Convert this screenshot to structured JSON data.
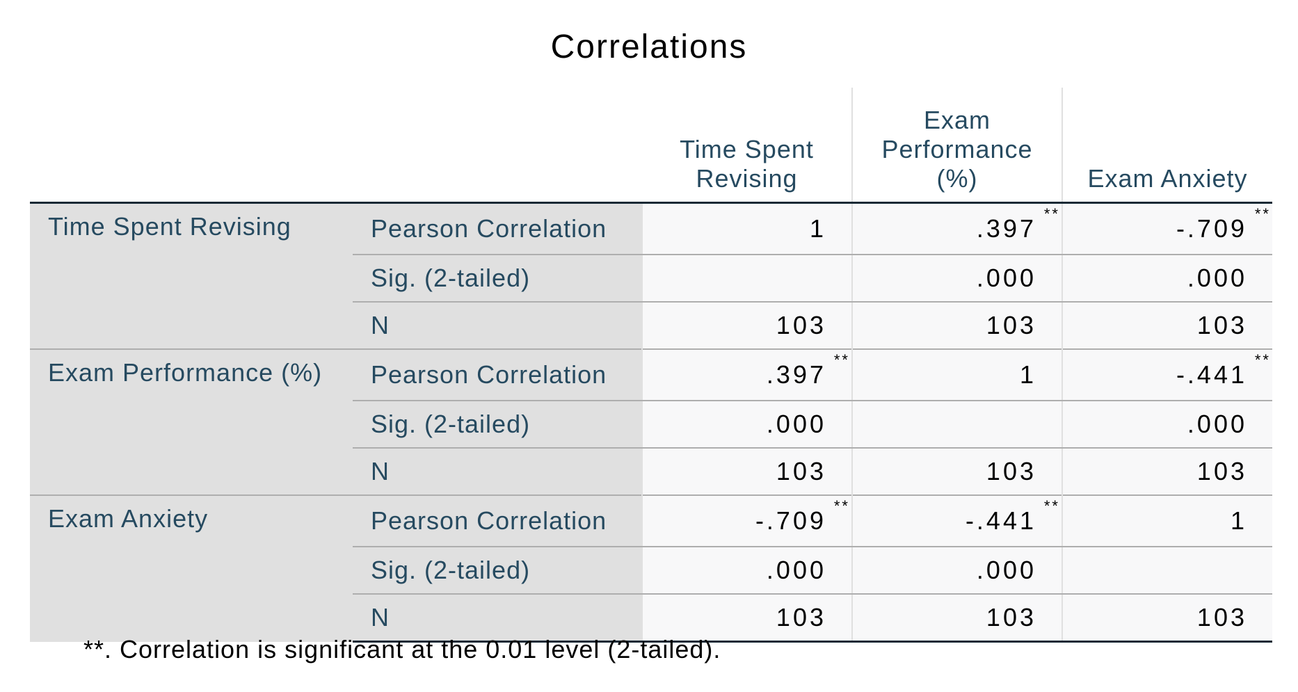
{
  "title": "Correlations",
  "columns": [
    "Time Spent\nRevising",
    "Exam\nPerformance\n(%)",
    "Exam Anxiety"
  ],
  "blocks": [
    {
      "variable": "Time Spent Revising",
      "rows": [
        {
          "stat": "Pearson Correlation",
          "values": [
            "1",
            ".397",
            "-.709"
          ],
          "flags": [
            "",
            "**",
            "**"
          ]
        },
        {
          "stat": "Sig. (2-tailed)",
          "values": [
            "",
            ".000",
            ".000"
          ]
        },
        {
          "stat": "N",
          "values": [
            "103",
            "103",
            "103"
          ]
        }
      ]
    },
    {
      "variable": "Exam Performance (%)",
      "rows": [
        {
          "stat": "Pearson Correlation",
          "values": [
            ".397",
            "1",
            "-.441"
          ],
          "flags": [
            "**",
            "",
            "**"
          ]
        },
        {
          "stat": "Sig. (2-tailed)",
          "values": [
            ".000",
            "",
            ".000"
          ]
        },
        {
          "stat": "N",
          "values": [
            "103",
            "103",
            "103"
          ]
        }
      ]
    },
    {
      "variable": "Exam Anxiety",
      "rows": [
        {
          "stat": "Pearson Correlation",
          "values": [
            "-.709",
            "-.441",
            "1"
          ],
          "flags": [
            "**",
            "**",
            ""
          ]
        },
        {
          "stat": "Sig. (2-tailed)",
          "values": [
            ".000",
            ".000",
            ""
          ]
        },
        {
          "stat": "N",
          "values": [
            "103",
            "103",
            "103"
          ]
        }
      ]
    }
  ],
  "footnote": "**. Correlation is significant at the 0.01 level (2-tailed)."
}
